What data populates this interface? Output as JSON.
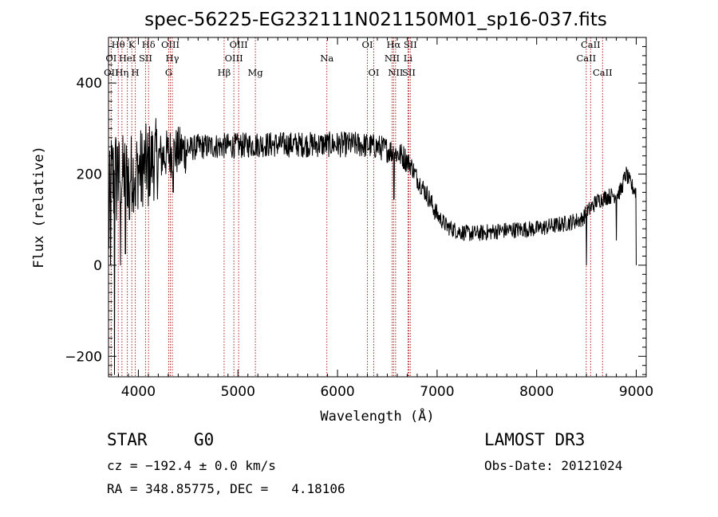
{
  "chart_data": {
    "type": "line",
    "title": "spec-56225-EG232111N021150M01_sp16-037.fits",
    "xlabel": "Wavelength (Å)",
    "ylabel": "Flux (relative)",
    "xlim": [
      3700,
      9100
    ],
    "ylim": [
      -245,
      500
    ],
    "x_ticks": [
      4000,
      5000,
      6000,
      7000,
      8000,
      9000
    ],
    "x_tick_labels": [
      "4000",
      "5000",
      "6000",
      "7000",
      "8000",
      "9000"
    ],
    "y_ticks": [
      -200,
      0,
      200,
      400
    ],
    "y_tick_labels": [
      "−200",
      "0",
      "200",
      "400"
    ],
    "grid": false,
    "legend": "none",
    "line_color": "#000000",
    "marker_color": "#b22222",
    "flux_anchors": {
      "x": [
        3700,
        3720,
        3760,
        3800,
        3850,
        3900,
        3950,
        4000,
        4100,
        4200,
        4300,
        4400,
        4600,
        4800,
        5000,
        5200,
        5400,
        5600,
        5800,
        6000,
        6200,
        6400,
        6550,
        6650,
        6700,
        6750,
        6800,
        6900,
        7000,
        7100,
        7200,
        7300,
        7400,
        7500,
        7600,
        7800,
        8000,
        8200,
        8300,
        8400,
        8450,
        8500,
        8600,
        8700,
        8800,
        8850,
        8880,
        8900,
        8950,
        9000
      ],
      "y": [
        60,
        180,
        190,
        195,
        200,
        200,
        205,
        210,
        225,
        235,
        245,
        250,
        260,
        262,
        262,
        265,
        265,
        265,
        265,
        265,
        265,
        260,
        250,
        240,
        230,
        215,
        190,
        155,
        110,
        85,
        75,
        70,
        70,
        72,
        75,
        78,
        80,
        88,
        92,
        98,
        100,
        115,
        140,
        150,
        155,
        165,
        190,
        200,
        175,
        160
      ]
    },
    "flux_dips": {
      "x": [
        3720,
        3760,
        3790,
        3820,
        3870,
        3910,
        3970,
        4030,
        4100,
        4350,
        6565,
        8500,
        8800,
        9000
      ],
      "y": [
        0,
        -240,
        260,
        0,
        25,
        100,
        130,
        140,
        130,
        160,
        145,
        0,
        55,
        0
      ]
    },
    "lines": [
      {
        "name": "OII",
        "wave": 3727,
        "row": 2
      },
      {
        "name": "OI",
        "wave": 3727,
        "row": 1
      },
      {
        "name": "Hθ",
        "wave": 3798,
        "row": 0
      },
      {
        "name": "Hη",
        "wave": 3835,
        "row": 2
      },
      {
        "name": "HeI",
        "wave": 3889,
        "row": 1
      },
      {
        "name": "K",
        "wave": 3934,
        "row": 0
      },
      {
        "name": "H",
        "wave": 3969,
        "row": 2
      },
      {
        "name": "SII",
        "wave": 4072,
        "row": 1
      },
      {
        "name": "Hδ",
        "wave": 4102,
        "row": 0
      },
      {
        "name": "G",
        "wave": 4305,
        "row": 2
      },
      {
        "name": "OIII",
        "wave": 4321,
        "row": 0
      },
      {
        "name": "Hγ",
        "wave": 4341,
        "row": 1
      },
      {
        "name": "Hβ",
        "wave": 4861,
        "row": 2
      },
      {
        "name": "OIII",
        "wave": 4959,
        "row": 1
      },
      {
        "name": "OIII",
        "wave": 5007,
        "row": 0
      },
      {
        "name": "Mg",
        "wave": 5175,
        "row": 2
      },
      {
        "name": "Na",
        "wave": 5893,
        "row": 1
      },
      {
        "name": "OI",
        "wave": 6300,
        "row": 0
      },
      {
        "name": "OI",
        "wave": 6364,
        "row": 2
      },
      {
        "name": "NII",
        "wave": 6548,
        "row": 1
      },
      {
        "name": "Hα",
        "wave": 6563,
        "row": 0
      },
      {
        "name": "NII",
        "wave": 6583,
        "row": 2
      },
      {
        "name": "SII",
        "wave": 6716,
        "row": 2
      },
      {
        "name": "Li",
        "wave": 6708,
        "row": 1
      },
      {
        "name": "SII",
        "wave": 6731,
        "row": 0
      },
      {
        "name": "CaII",
        "wave": 8498,
        "row": 1
      },
      {
        "name": "CaII",
        "wave": 8542,
        "row": 0
      },
      {
        "name": "CaII",
        "wave": 8662,
        "row": 2
      }
    ]
  },
  "info": {
    "class": "STAR",
    "subclass": "G0",
    "survey": "LAMOST DR3",
    "cz": "cz = −192.4 ± 0.0 km/s",
    "obs_date": "Obs-Date: 20121024",
    "coords": "RA = 348.85775, DEC =   4.18106"
  }
}
